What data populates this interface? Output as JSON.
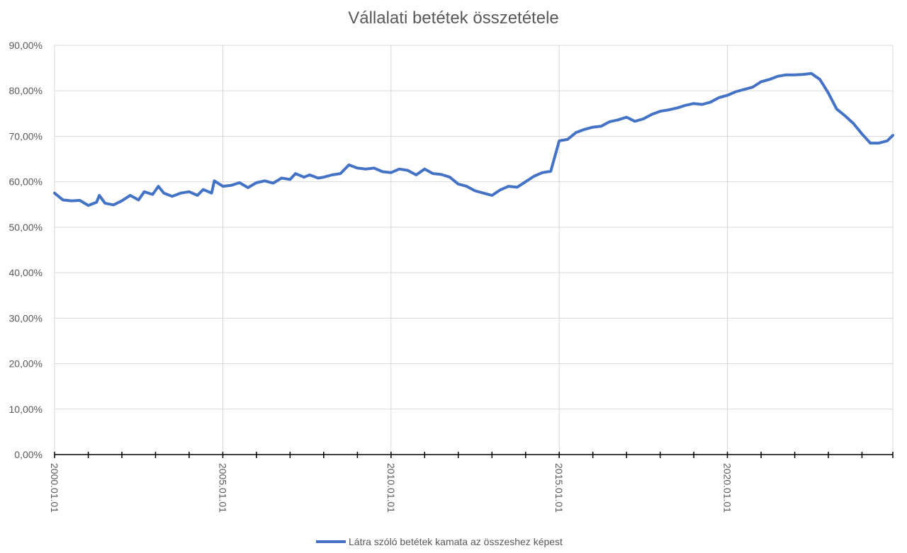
{
  "chart_data": {
    "type": "line",
    "title": "Vállalati betétek összetétele",
    "xlabel": "",
    "ylabel": "",
    "ylim": [
      0,
      90
    ],
    "xlim": [
      "2000-01-01",
      "2024-12-01"
    ],
    "y_tick_labels": [
      "0,00%",
      "10,00%",
      "20,00%",
      "30,00%",
      "40,00%",
      "50,00%",
      "60,00%",
      "70,00%",
      "80,00%",
      "90,00%"
    ],
    "x_tick_labels": [
      {
        "date": "2000-01-01",
        "label": "2000.01.01"
      },
      {
        "date": "2005-01-01",
        "label": "2005.01.01"
      },
      {
        "date": "2010-01-01",
        "label": "2010.01.01"
      },
      {
        "date": "2015-01-01",
        "label": "2015.01.01"
      },
      {
        "date": "2020-01-01",
        "label": "2020.01.01"
      }
    ],
    "grid": true,
    "legend_position": "bottom",
    "series": [
      {
        "name": "Látra szóló betétek kamata az összeshez képest",
        "color": "#4472c4",
        "points": [
          [
            "2000-01-01",
            57.5
          ],
          [
            "2000-04-01",
            56.0
          ],
          [
            "2000-07-01",
            55.8
          ],
          [
            "2000-10-01",
            55.9
          ],
          [
            "2001-01-01",
            54.8
          ],
          [
            "2001-04-01",
            55.5
          ],
          [
            "2001-05-01",
            57.0
          ],
          [
            "2001-07-01",
            55.3
          ],
          [
            "2001-10-01",
            54.9
          ],
          [
            "2002-01-01",
            55.8
          ],
          [
            "2002-04-01",
            57.0
          ],
          [
            "2002-07-01",
            56.0
          ],
          [
            "2002-09-01",
            57.8
          ],
          [
            "2002-12-01",
            57.2
          ],
          [
            "2003-02-01",
            59.0
          ],
          [
            "2003-04-01",
            57.5
          ],
          [
            "2003-07-01",
            56.8
          ],
          [
            "2003-10-01",
            57.5
          ],
          [
            "2004-01-01",
            57.8
          ],
          [
            "2004-04-01",
            57.0
          ],
          [
            "2004-06-01",
            58.3
          ],
          [
            "2004-09-01",
            57.5
          ],
          [
            "2004-10-01",
            60.2
          ],
          [
            "2005-01-01",
            59.0
          ],
          [
            "2005-04-01",
            59.2
          ],
          [
            "2005-07-01",
            59.8
          ],
          [
            "2005-10-01",
            58.7
          ],
          [
            "2006-01-01",
            59.8
          ],
          [
            "2006-04-01",
            60.2
          ],
          [
            "2006-07-01",
            59.7
          ],
          [
            "2006-10-01",
            60.8
          ],
          [
            "2007-01-01",
            60.5
          ],
          [
            "2007-03-01",
            61.8
          ],
          [
            "2007-06-01",
            61.0
          ],
          [
            "2007-08-01",
            61.5
          ],
          [
            "2007-11-01",
            60.8
          ],
          [
            "2008-01-01",
            61.0
          ],
          [
            "2008-04-01",
            61.5
          ],
          [
            "2008-07-01",
            61.8
          ],
          [
            "2008-10-01",
            63.7
          ],
          [
            "2009-01-01",
            63.0
          ],
          [
            "2009-04-01",
            62.8
          ],
          [
            "2009-07-01",
            63.0
          ],
          [
            "2009-10-01",
            62.2
          ],
          [
            "2010-01-01",
            62.0
          ],
          [
            "2010-04-01",
            62.8
          ],
          [
            "2010-07-01",
            62.5
          ],
          [
            "2010-10-01",
            61.5
          ],
          [
            "2011-01-01",
            62.8
          ],
          [
            "2011-04-01",
            61.8
          ],
          [
            "2011-07-01",
            61.6
          ],
          [
            "2011-10-01",
            61.0
          ],
          [
            "2012-01-01",
            59.5
          ],
          [
            "2012-04-01",
            59.0
          ],
          [
            "2012-07-01",
            58.0
          ],
          [
            "2012-10-01",
            57.5
          ],
          [
            "2013-01-01",
            57.0
          ],
          [
            "2013-04-01",
            58.2
          ],
          [
            "2013-07-01",
            59.0
          ],
          [
            "2013-10-01",
            58.8
          ],
          [
            "2014-01-01",
            60.0
          ],
          [
            "2014-04-01",
            61.2
          ],
          [
            "2014-07-01",
            62.0
          ],
          [
            "2014-10-01",
            62.3
          ],
          [
            "2015-01-01",
            69.0
          ],
          [
            "2015-04-01",
            69.3
          ],
          [
            "2015-07-01",
            70.8
          ],
          [
            "2015-10-01",
            71.5
          ],
          [
            "2016-01-01",
            72.0
          ],
          [
            "2016-04-01",
            72.2
          ],
          [
            "2016-07-01",
            73.2
          ],
          [
            "2016-10-01",
            73.6
          ],
          [
            "2017-01-01",
            74.2
          ],
          [
            "2017-04-01",
            73.3
          ],
          [
            "2017-07-01",
            73.8
          ],
          [
            "2017-10-01",
            74.8
          ],
          [
            "2018-01-01",
            75.5
          ],
          [
            "2018-04-01",
            75.8
          ],
          [
            "2018-07-01",
            76.2
          ],
          [
            "2018-10-01",
            76.8
          ],
          [
            "2019-01-01",
            77.2
          ],
          [
            "2019-04-01",
            77.0
          ],
          [
            "2019-07-01",
            77.5
          ],
          [
            "2019-10-01",
            78.5
          ],
          [
            "2020-01-01",
            79.0
          ],
          [
            "2020-04-01",
            79.8
          ],
          [
            "2020-07-01",
            80.3
          ],
          [
            "2020-10-01",
            80.8
          ],
          [
            "2021-01-01",
            82.0
          ],
          [
            "2021-04-01",
            82.5
          ],
          [
            "2021-07-01",
            83.2
          ],
          [
            "2021-10-01",
            83.5
          ],
          [
            "2022-01-01",
            83.5
          ],
          [
            "2022-04-01",
            83.6
          ],
          [
            "2022-07-01",
            83.8
          ],
          [
            "2022-10-01",
            82.5
          ],
          [
            "2023-01-01",
            79.5
          ],
          [
            "2023-04-01",
            76.0
          ],
          [
            "2023-07-01",
            74.5
          ],
          [
            "2023-10-01",
            72.8
          ],
          [
            "2024-01-01",
            70.5
          ],
          [
            "2024-04-01",
            68.5
          ],
          [
            "2024-07-01",
            68.5
          ],
          [
            "2024-10-01",
            69.0
          ],
          [
            "2024-12-01",
            70.2
          ]
        ]
      },
      {
        "name": "",
        "color": "#4472c4",
        "points": []
      }
    ]
  }
}
